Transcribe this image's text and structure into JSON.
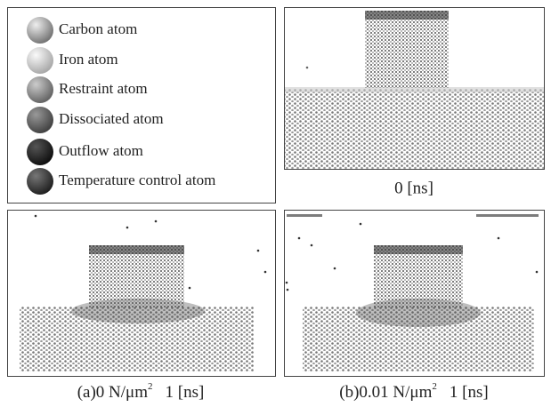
{
  "legend": {
    "items": [
      "Carbon atom",
      "Iron atom",
      "Restraint atom",
      "Dissociated atom",
      "Outflow atom",
      "Temperature control atom"
    ]
  },
  "panels": [
    {
      "caption": {
        "text": "0 [ns]"
      }
    },
    {
      "caption": {
        "prefix": "(a)0 N/μm",
        "sup": "2",
        "suffix": "1 [ns]"
      }
    },
    {
      "caption": {
        "prefix": "(b)0.01 N/μm",
        "sup": "2",
        "suffix": "1 [ns]"
      }
    }
  ]
}
